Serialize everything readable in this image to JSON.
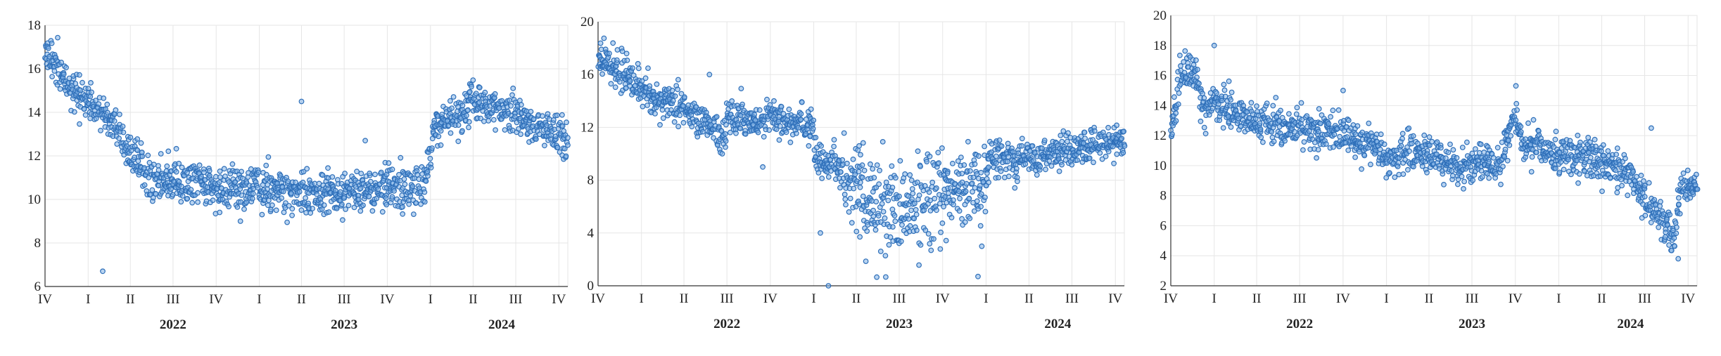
{
  "colors": {
    "point": "#2e6fb9",
    "point_fill": "#7fb0e6",
    "grid": "#e6e6e6",
    "axis": "#333333"
  },
  "chart_data": [
    {
      "type": "scatter",
      "title": "",
      "xlabel": "",
      "ylabel": "",
      "grid": true,
      "x_range": [
        "2021-10-01",
        "2024-10-20"
      ],
      "ylim": [
        6,
        18
      ],
      "yticks": [
        6,
        8,
        10,
        12,
        14,
        16,
        18
      ],
      "quarter_labels": [
        "IV",
        "I",
        "II",
        "III",
        "IV",
        "I",
        "II",
        "III",
        "IV",
        "I",
        "II",
        "III",
        "IV"
      ],
      "year_labels": [
        "2022",
        "2023",
        "2024"
      ],
      "trend": [
        [
          "2021-10-01",
          16.9
        ],
        [
          "2021-11-15",
          15.3
        ],
        [
          "2022-01-15",
          14.2
        ],
        [
          "2022-03-01",
          13.4
        ],
        [
          "2022-04-01",
          12.2
        ],
        [
          "2022-05-15",
          11.0
        ],
        [
          "2022-07-01",
          10.9
        ],
        [
          "2022-10-01",
          10.5
        ],
        [
          "2023-01-01",
          10.5
        ],
        [
          "2023-04-01",
          10.4
        ],
        [
          "2023-07-01",
          10.1
        ],
        [
          "2023-10-01",
          10.6
        ],
        [
          "2023-12-20",
          10.6
        ],
        [
          "2024-01-10",
          13.5
        ],
        [
          "2024-03-01",
          13.8
        ],
        [
          "2024-04-01",
          14.5
        ],
        [
          "2024-06-01",
          14.0
        ],
        [
          "2024-08-01",
          13.6
        ],
        [
          "2024-10-20",
          12.6
        ]
      ],
      "outliers": [
        [
          "2022-02-01",
          6.7
        ],
        [
          "2023-04-01",
          14.5
        ],
        [
          "2023-08-15",
          12.7
        ]
      ]
    },
    {
      "type": "scatter",
      "title": "",
      "xlabel": "",
      "ylabel": "",
      "grid": true,
      "x_range": [
        "2021-10-01",
        "2024-10-20"
      ],
      "ylim": [
        0,
        20
      ],
      "yticks": [
        0,
        4,
        8,
        12,
        16,
        20
      ],
      "quarter_labels": [
        "IV",
        "I",
        "II",
        "III",
        "IV",
        "I",
        "II",
        "III",
        "IV",
        "I",
        "II",
        "III",
        "IV"
      ],
      "year_labels": [
        "2022",
        "2023",
        "2024"
      ],
      "trend": [
        [
          "2021-10-01",
          17.5
        ],
        [
          "2021-12-01",
          15.8
        ],
        [
          "2022-02-01",
          14.2
        ],
        [
          "2022-04-01",
          13.2
        ],
        [
          "2022-06-01",
          12.1
        ],
        [
          "2022-06-20",
          11.0
        ],
        [
          "2022-07-01",
          12.7
        ],
        [
          "2022-09-01",
          12.4
        ],
        [
          "2022-10-20",
          12.6
        ],
        [
          "2022-12-31",
          12.2
        ],
        [
          "2023-01-01",
          9.4
        ],
        [
          "2023-02-15",
          9.2
        ],
        [
          "2023-03-15",
          8.6
        ],
        [
          "2023-04-15",
          7.0
        ],
        [
          "2023-06-01",
          6.0
        ],
        [
          "2023-08-01",
          5.8
        ],
        [
          "2023-10-01",
          7.1
        ],
        [
          "2023-12-31",
          7.6
        ],
        [
          "2024-01-10",
          10.0
        ],
        [
          "2024-03-01",
          9.5
        ],
        [
          "2024-05-01",
          9.8
        ],
        [
          "2024-07-01",
          10.4
        ],
        [
          "2024-10-20",
          10.8
        ]
      ],
      "outliers": [
        [
          "2022-05-25",
          16.0
        ],
        [
          "2022-09-15",
          9.0
        ],
        [
          "2023-01-15",
          4.0
        ],
        [
          "2023-02-01",
          0.0
        ],
        [
          "2023-12-15",
          0.7
        ]
      ]
    },
    {
      "type": "scatter",
      "title": "",
      "xlabel": "",
      "ylabel": "",
      "grid": true,
      "x_range": [
        "2021-10-01",
        "2024-10-20"
      ],
      "ylim": [
        2,
        20
      ],
      "yticks": [
        2,
        4,
        6,
        8,
        10,
        12,
        14,
        16,
        18,
        20
      ],
      "quarter_labels": [
        "IV",
        "I",
        "II",
        "III",
        "IV",
        "I",
        "II",
        "III",
        "IV",
        "I",
        "II",
        "III",
        "IV"
      ],
      "year_labels": [
        "2022",
        "2023",
        "2024"
      ],
      "trend": [
        [
          "2021-10-01",
          12.0
        ],
        [
          "2021-10-20",
          16.0
        ],
        [
          "2021-11-20",
          16.3
        ],
        [
          "2021-12-10",
          13.5
        ],
        [
          "2022-01-01",
          14.5
        ],
        [
          "2022-03-01",
          13.0
        ],
        [
          "2022-06-01",
          12.5
        ],
        [
          "2022-09-01",
          12.3
        ],
        [
          "2022-12-01",
          11.4
        ],
        [
          "2022-12-31",
          10.5
        ],
        [
          "2023-03-01",
          10.9
        ],
        [
          "2023-06-01",
          10.0
        ],
        [
          "2023-09-01",
          10.2
        ],
        [
          "2023-10-01",
          13.8
        ],
        [
          "2023-10-15",
          11.6
        ],
        [
          "2024-01-01",
          10.7
        ],
        [
          "2024-04-01",
          10.3
        ],
        [
          "2024-06-01",
          9.4
        ],
        [
          "2024-07-01",
          7.8
        ],
        [
          "2024-08-01",
          6.6
        ],
        [
          "2024-09-01",
          5.2
        ],
        [
          "2024-09-15",
          8.5
        ],
        [
          "2024-10-20",
          8.7
        ]
      ],
      "outliers": [
        [
          "2022-01-01",
          18.0
        ],
        [
          "2022-10-01",
          15.0
        ],
        [
          "2024-07-15",
          12.5
        ],
        [
          "2024-09-10",
          3.8
        ]
      ]
    }
  ]
}
